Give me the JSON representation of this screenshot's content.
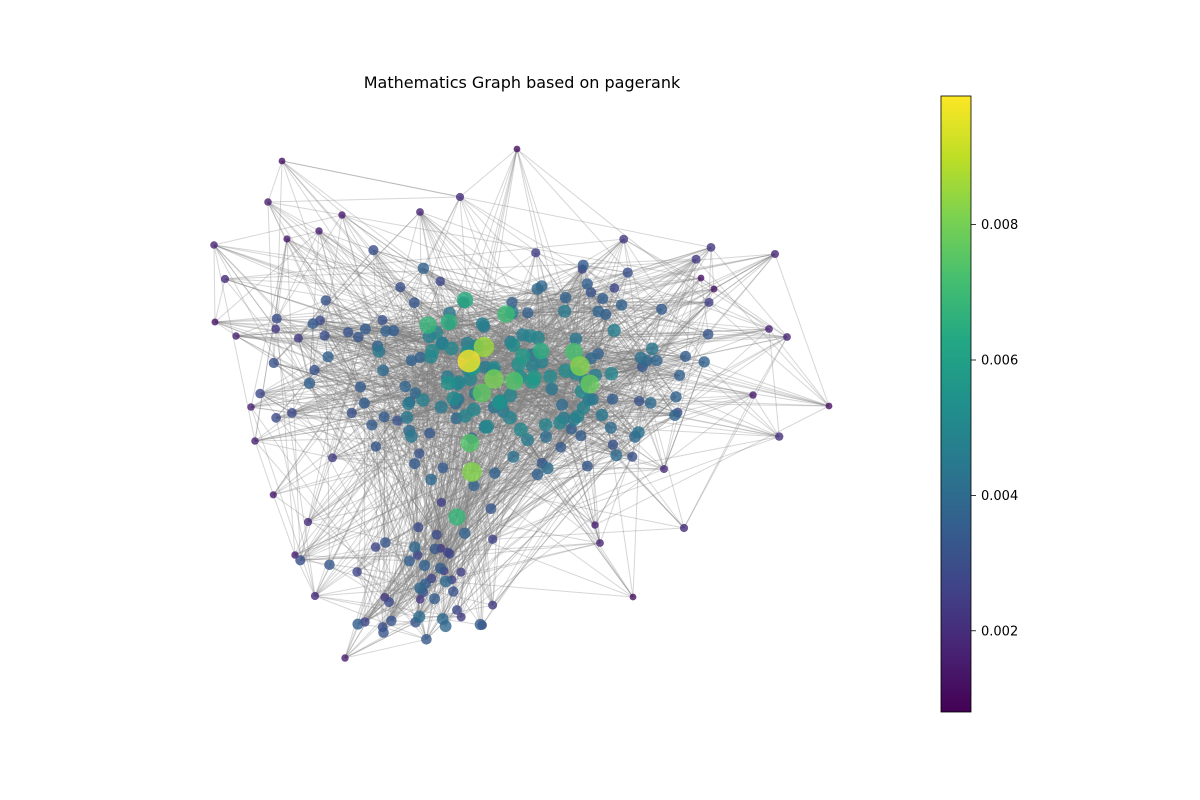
{
  "chart_data": {
    "type": "scatter",
    "subtype": "network-graph",
    "title": "Mathematics Graph based on pagerank",
    "colormap": "viridis",
    "colorbar": {
      "label": "",
      "range": [
        0.0008,
        0.0099
      ],
      "ticks": [
        0.002,
        0.004,
        0.006,
        0.008
      ],
      "tick_labels": [
        "0.002",
        "0.004",
        "0.006",
        "0.008"
      ]
    },
    "axes_visible": false,
    "edge_color": "#808080",
    "highest_pagerank_node_value": 0.0098,
    "node_count": 300
  }
}
